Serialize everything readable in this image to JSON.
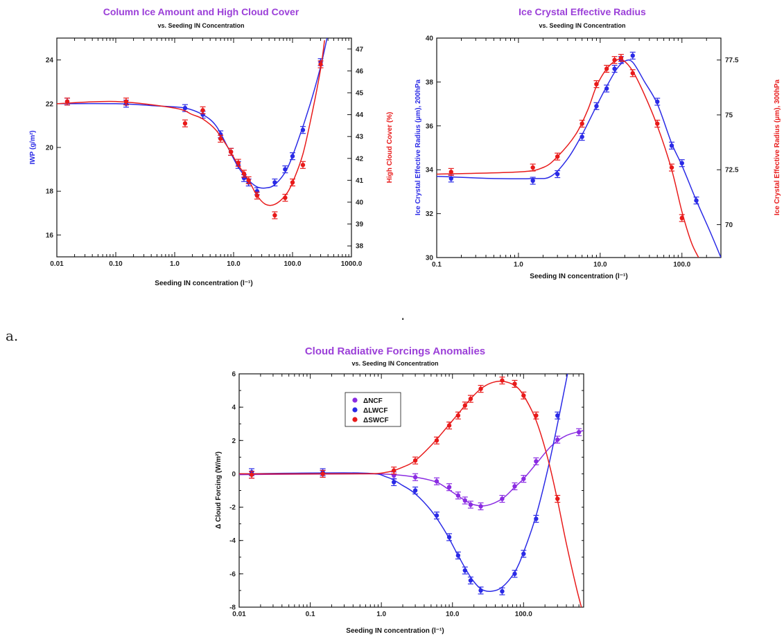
{
  "panel_label": "a.",
  "stray_mark": "·",
  "chart_data": [
    {
      "id": "ice",
      "type": "line",
      "title": "Column Ice Amount and High Cloud Cover",
      "subtitle": "vs. Seeding IN Concentration",
      "xlabel": "Seeding IN concentration (l⁻¹)",
      "xscale": "log",
      "xlim": [
        0.01,
        1000
      ],
      "xticks": [
        "0.01",
        "0.10",
        "1.0",
        "10.0",
        "100.0",
        "1000.0"
      ],
      "ylabel_left": "IWP (g/m²)",
      "ylim_left": [
        15,
        25
      ],
      "yticks_left": [
        "16",
        "18",
        "20",
        "22",
        "24"
      ],
      "ylabel_right": "High Cloud Cover (%)",
      "ylim_right": [
        37.5,
        47.5
      ],
      "yticks_right": [
        "38",
        "39",
        "40",
        "41",
        "42",
        "43",
        "44",
        "45",
        "46",
        "47"
      ],
      "series": [
        {
          "axis": "left",
          "color": "#2a2ae6",
          "points": [
            [
              0.015,
              22.1
            ],
            [
              0.15,
              22.0
            ],
            [
              1.5,
              21.8
            ],
            [
              3,
              21.5
            ],
            [
              6,
              20.6
            ],
            [
              9,
              19.8
            ],
            [
              12,
              19.2
            ],
            [
              15,
              18.6
            ],
            [
              18,
              18.4
            ],
            [
              25,
              18.0
            ],
            [
              50,
              18.4
            ],
            [
              75,
              19.0
            ],
            [
              100,
              19.6
            ],
            [
              150,
              20.8
            ],
            [
              300,
              23.9
            ]
          ],
          "curve": [
            [
              0.01,
              22.0
            ],
            [
              0.1,
              22.0
            ],
            [
              0.5,
              21.9
            ],
            [
              1.5,
              21.8
            ],
            [
              3,
              21.5
            ],
            [
              5,
              21.0
            ],
            [
              8,
              20.0
            ],
            [
              12,
              19.1
            ],
            [
              18,
              18.5
            ],
            [
              25,
              18.2
            ],
            [
              35,
              18.15
            ],
            [
              50,
              18.3
            ],
            [
              80,
              19.0
            ],
            [
              120,
              20.2
            ],
            [
              200,
              22.0
            ],
            [
              300,
              23.7
            ],
            [
              400,
              25.2
            ]
          ]
        },
        {
          "axis": "right",
          "color": "#e81a1a",
          "points": [
            [
              0.015,
              44.6
            ],
            [
              0.15,
              44.6
            ],
            [
              1.5,
              43.6
            ],
            [
              3,
              44.2
            ],
            [
              6,
              42.9
            ],
            [
              9,
              42.3
            ],
            [
              12,
              41.8
            ],
            [
              15,
              41.3
            ],
            [
              18,
              41.0
            ],
            [
              25,
              40.3
            ],
            [
              50,
              39.4
            ],
            [
              75,
              40.2
            ],
            [
              100,
              40.9
            ],
            [
              150,
              41.7
            ],
            [
              300,
              46.3
            ]
          ],
          "curve": [
            [
              0.01,
              44.5
            ],
            [
              0.1,
              44.6
            ],
            [
              1,
              44.3
            ],
            [
              2,
              44.0
            ],
            [
              3,
              43.8
            ],
            [
              5,
              43.3
            ],
            [
              8,
              42.5
            ],
            [
              12,
              41.7
            ],
            [
              18,
              41.0
            ],
            [
              25,
              40.3
            ],
            [
              35,
              39.9
            ],
            [
              50,
              39.9
            ],
            [
              75,
              40.3
            ],
            [
              100,
              40.9
            ],
            [
              150,
              42.2
            ],
            [
              220,
              44.2
            ],
            [
              300,
              46.1
            ],
            [
              350,
              47.4
            ]
          ]
        }
      ]
    },
    {
      "id": "radius",
      "type": "line",
      "title": "Ice Crystal Effective Radius",
      "subtitle": "vs. Seeding IN Concentration",
      "xlabel": "Seeding IN concentration (l⁻¹)",
      "xscale": "log",
      "xlim": [
        0.1,
        300
      ],
      "xticks": [
        "0.1",
        "1.0",
        "10.0",
        "100.0"
      ],
      "ylabel_left": "Ice Crystal Effective Radius (μm), 200hPa",
      "ylim_left": [
        30,
        40
      ],
      "yticks_left": [
        "30",
        "32",
        "34",
        "36",
        "38",
        "40"
      ],
      "ylabel_right": "Ice Crystal Effective Radius (μm), 300hPa",
      "ylim_right": [
        68.5,
        78.5
      ],
      "yticks_right": [
        "70",
        "72.5",
        "75",
        "77.5"
      ],
      "series": [
        {
          "axis": "left",
          "color": "#2a2ae6",
          "points": [
            [
              0.15,
              33.6
            ],
            [
              1.5,
              33.5
            ],
            [
              3,
              33.8
            ],
            [
              6,
              35.5
            ],
            [
              9,
              36.9
            ],
            [
              12,
              37.7
            ],
            [
              15,
              38.6
            ],
            [
              18,
              39.0
            ],
            [
              25,
              39.2
            ],
            [
              50,
              37.1
            ],
            [
              75,
              35.1
            ],
            [
              100,
              34.3
            ],
            [
              150,
              32.6
            ]
          ],
          "curve": [
            [
              0.1,
              33.7
            ],
            [
              0.5,
              33.6
            ],
            [
              1.5,
              33.6
            ],
            [
              2.5,
              33.7
            ],
            [
              4,
              34.5
            ],
            [
              6,
              35.6
            ],
            [
              9,
              36.9
            ],
            [
              12,
              37.8
            ],
            [
              16,
              38.6
            ],
            [
              20,
              38.95
            ],
            [
              25,
              38.9
            ],
            [
              35,
              38.0
            ],
            [
              50,
              37.0
            ],
            [
              75,
              35.2
            ],
            [
              100,
              34.2
            ],
            [
              150,
              32.6
            ],
            [
              220,
              31.2
            ],
            [
              300,
              30.0
            ]
          ]
        },
        {
          "axis": "right",
          "color": "#e81a1a",
          "points": [
            [
              0.15,
              72.4
            ],
            [
              1.5,
              72.6
            ],
            [
              3,
              73.1
            ],
            [
              6,
              74.6
            ],
            [
              9,
              76.4
            ],
            [
              12,
              77.1
            ],
            [
              15,
              77.5
            ],
            [
              18,
              77.6
            ],
            [
              25,
              76.9
            ],
            [
              50,
              74.6
            ],
            [
              75,
              72.6
            ],
            [
              100,
              70.3
            ]
          ],
          "curve": [
            [
              0.1,
              72.3
            ],
            [
              1,
              72.4
            ],
            [
              2,
              72.6
            ],
            [
              3,
              73.1
            ],
            [
              5,
              74.1
            ],
            [
              7,
              75.2
            ],
            [
              9,
              76.3
            ],
            [
              12,
              77.1
            ],
            [
              16,
              77.5
            ],
            [
              19,
              77.5
            ],
            [
              25,
              77.0
            ],
            [
              35,
              75.9
            ],
            [
              50,
              74.5
            ],
            [
              75,
              72.5
            ],
            [
              100,
              70.6
            ],
            [
              130,
              69.2
            ],
            [
              160,
              68.5
            ]
          ]
        }
      ]
    },
    {
      "id": "forcing",
      "type": "line",
      "title": "Cloud Radiative Forcings Anomalies",
      "subtitle": "vs. Seeding IN Concentration",
      "xlabel": "Seeding IN concentration (l⁻¹)",
      "xscale": "log",
      "xlim": [
        0.01,
        700
      ],
      "xticks": [
        "0.01",
        "0.1",
        "1.0",
        "10.0",
        "100.0"
      ],
      "ylabel_left": "Δ Cloud Forcing (W/m²)",
      "ylim_left": [
        -8,
        6
      ],
      "yticks_left": [
        "-8",
        "-6",
        "-4",
        "-2",
        "0",
        "2",
        "4",
        "6"
      ],
      "legend": {
        "position": "top-left"
      },
      "series": [
        {
          "name": "ΔNCF",
          "axis": "left",
          "color": "#8a2be2",
          "points": [
            [
              0.015,
              -0.05
            ],
            [
              0.15,
              0.0
            ],
            [
              1.5,
              -0.1
            ],
            [
              3,
              -0.2
            ],
            [
              6,
              -0.45
            ],
            [
              9,
              -0.8
            ],
            [
              12,
              -1.3
            ],
            [
              15,
              -1.6
            ],
            [
              18,
              -1.85
            ],
            [
              25,
              -1.95
            ],
            [
              50,
              -1.5
            ],
            [
              75,
              -0.75
            ],
            [
              100,
              -0.3
            ],
            [
              150,
              0.75
            ],
            [
              300,
              2.05
            ],
            [
              600,
              2.5
            ]
          ],
          "curve": [
            [
              0.01,
              -0.05
            ],
            [
              0.5,
              0.0
            ],
            [
              1.5,
              -0.05
            ],
            [
              3,
              -0.2
            ],
            [
              6,
              -0.5
            ],
            [
              10,
              -1.1
            ],
            [
              15,
              -1.6
            ],
            [
              20,
              -1.85
            ],
            [
              30,
              -1.9
            ],
            [
              50,
              -1.5
            ],
            [
              75,
              -0.8
            ],
            [
              100,
              -0.3
            ],
            [
              150,
              0.6
            ],
            [
              250,
              1.7
            ],
            [
              400,
              2.3
            ],
            [
              700,
              2.6
            ]
          ]
        },
        {
          "name": "ΔLWCF",
          "axis": "left",
          "color": "#2a2ae6",
          "points": [
            [
              0.015,
              0.1
            ],
            [
              0.15,
              0.1
            ],
            [
              1.5,
              -0.5
            ],
            [
              3,
              -1.0
            ],
            [
              6,
              -2.5
            ],
            [
              9,
              -3.8
            ],
            [
              12,
              -4.9
            ],
            [
              15,
              -5.8
            ],
            [
              18,
              -6.4
            ],
            [
              25,
              -7.0
            ],
            [
              50,
              -7.05
            ],
            [
              75,
              -6.0
            ],
            [
              100,
              -4.8
            ],
            [
              150,
              -2.7
            ],
            [
              300,
              3.5
            ]
          ],
          "curve": [
            [
              0.01,
              0.0
            ],
            [
              0.5,
              0.05
            ],
            [
              1.2,
              -0.2
            ],
            [
              2,
              -0.7
            ],
            [
              3,
              -1.2
            ],
            [
              5,
              -2.2
            ],
            [
              8,
              -3.5
            ],
            [
              12,
              -4.9
            ],
            [
              18,
              -6.2
            ],
            [
              25,
              -6.9
            ],
            [
              35,
              -7.05
            ],
            [
              50,
              -6.8
            ],
            [
              75,
              -5.9
            ],
            [
              100,
              -4.7
            ],
            [
              150,
              -2.5
            ],
            [
              220,
              0.3
            ],
            [
              300,
              3.0
            ],
            [
              420,
              6.1
            ]
          ]
        },
        {
          "name": "ΔSWCF",
          "axis": "left",
          "color": "#e81a1a",
          "points": [
            [
              0.015,
              -0.05
            ],
            [
              0.15,
              0.0
            ],
            [
              1.5,
              0.2
            ],
            [
              3,
              0.8
            ],
            [
              6,
              2.0
            ],
            [
              9,
              2.9
            ],
            [
              12,
              3.5
            ],
            [
              15,
              4.1
            ],
            [
              18,
              4.5
            ],
            [
              25,
              5.1
            ],
            [
              50,
              5.6
            ],
            [
              75,
              5.4
            ],
            [
              100,
              4.7
            ],
            [
              150,
              3.5
            ],
            [
              300,
              -1.5
            ]
          ],
          "curve": [
            [
              0.01,
              0.0
            ],
            [
              0.5,
              0.0
            ],
            [
              1.2,
              0.1
            ],
            [
              2,
              0.4
            ],
            [
              3,
              0.8
            ],
            [
              5,
              1.7
            ],
            [
              8,
              2.7
            ],
            [
              12,
              3.6
            ],
            [
              18,
              4.5
            ],
            [
              25,
              5.1
            ],
            [
              35,
              5.45
            ],
            [
              50,
              5.55
            ],
            [
              75,
              5.3
            ],
            [
              100,
              4.7
            ],
            [
              150,
              3.2
            ],
            [
              220,
              0.9
            ],
            [
              300,
              -1.6
            ],
            [
              400,
              -4.2
            ],
            [
              550,
              -6.8
            ],
            [
              650,
              -8.0
            ]
          ]
        }
      ]
    }
  ]
}
